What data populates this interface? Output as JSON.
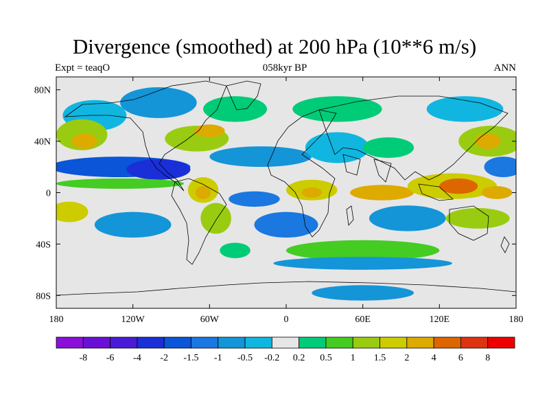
{
  "title": "Divergence (smoothed) at 200 hPa (10**6 m/s)",
  "left_label": "Expt = teaqO",
  "center_label": "058kyr BP",
  "right_label": "ANN",
  "map": {
    "lon_ticks": [
      {
        "value": -180,
        "label": "180"
      },
      {
        "value": -120,
        "label": "120W"
      },
      {
        "value": -60,
        "label": "60W"
      },
      {
        "value": 0,
        "label": "0"
      },
      {
        "value": 60,
        "label": "60E"
      },
      {
        "value": 120,
        "label": "120E"
      },
      {
        "value": 180,
        "label": "180"
      }
    ],
    "lat_ticks": [
      {
        "value": 80,
        "label": "80N"
      },
      {
        "value": 40,
        "label": "40N"
      },
      {
        "value": 0,
        "label": "0"
      },
      {
        "value": -40,
        "label": "40S"
      },
      {
        "value": -80,
        "label": "80S"
      }
    ],
    "lon_range": [
      -180,
      180
    ],
    "lat_range": [
      -90,
      90
    ]
  },
  "colorbar": {
    "colors": [
      "#8a0fd8",
      "#6a10d6",
      "#4a1bd6",
      "#1a2fd8",
      "#0a55d8",
      "#1a78e0",
      "#1495d8",
      "#10b6e0",
      "#e6e6e6",
      "#00cc77",
      "#44cc22",
      "#99cc11",
      "#cccc00",
      "#ddaa00",
      "#dd6600",
      "#dd3311",
      "#ee0000"
    ],
    "labels": [
      "-8",
      "-6",
      "-4",
      "-2",
      "-1.5",
      "-1",
      "-0.5",
      "-0.2",
      "0.2",
      "0.5",
      "1",
      "1.5",
      "2",
      "4",
      "6",
      "8"
    ]
  },
  "blobs": [
    {
      "lon": -150,
      "lat": 60,
      "rx": 25,
      "ry": 12,
      "level": 7
    },
    {
      "lon": -100,
      "lat": 70,
      "rx": 30,
      "ry": 12,
      "level": 6
    },
    {
      "lon": -40,
      "lat": 65,
      "rx": 25,
      "ry": 10,
      "level": 9
    },
    {
      "lon": 40,
      "lat": 65,
      "rx": 35,
      "ry": 10,
      "level": 9
    },
    {
      "lon": 140,
      "lat": 65,
      "rx": 30,
      "ry": 10,
      "level": 7
    },
    {
      "lon": -160,
      "lat": 45,
      "rx": 20,
      "ry": 12,
      "level": 11
    },
    {
      "lon": -158,
      "lat": 40,
      "rx": 10,
      "ry": 6,
      "level": 13
    },
    {
      "lon": -70,
      "lat": 42,
      "rx": 25,
      "ry": 10,
      "level": 11
    },
    {
      "lon": -60,
      "lat": 48,
      "rx": 12,
      "ry": 5,
      "level": 13
    },
    {
      "lon": 160,
      "lat": 40,
      "rx": 25,
      "ry": 12,
      "level": 11
    },
    {
      "lon": 158,
      "lat": 40,
      "rx": 10,
      "ry": 6,
      "level": 13
    },
    {
      "lon": -130,
      "lat": 20,
      "rx": 55,
      "ry": 8,
      "level": 4
    },
    {
      "lon": -100,
      "lat": 18,
      "rx": 25,
      "ry": 8,
      "level": 3
    },
    {
      "lon": -20,
      "lat": 28,
      "rx": 40,
      "ry": 8,
      "level": 6
    },
    {
      "lon": 40,
      "lat": 35,
      "rx": 25,
      "ry": 12,
      "level": 7
    },
    {
      "lon": 80,
      "lat": 35,
      "rx": 20,
      "ry": 8,
      "level": 9
    },
    {
      "lon": 170,
      "lat": 20,
      "rx": 15,
      "ry": 8,
      "level": 5
    },
    {
      "lon": -130,
      "lat": 7,
      "rx": 50,
      "ry": 4,
      "level": 10
    },
    {
      "lon": -65,
      "lat": 2,
      "rx": 12,
      "ry": 10,
      "level": 12
    },
    {
      "lon": -65,
      "lat": 0,
      "rx": 6,
      "ry": 5,
      "level": 13
    },
    {
      "lon": 20,
      "lat": 2,
      "rx": 20,
      "ry": 8,
      "level": 12
    },
    {
      "lon": 20,
      "lat": 0,
      "rx": 8,
      "ry": 4,
      "level": 13
    },
    {
      "lon": 75,
      "lat": 0,
      "rx": 25,
      "ry": 6,
      "level": 13
    },
    {
      "lon": 130,
      "lat": 5,
      "rx": 35,
      "ry": 10,
      "level": 12
    },
    {
      "lon": 135,
      "lat": 5,
      "rx": 15,
      "ry": 6,
      "level": 14
    },
    {
      "lon": 165,
      "lat": 0,
      "rx": 12,
      "ry": 5,
      "level": 13
    },
    {
      "lon": -25,
      "lat": -5,
      "rx": 20,
      "ry": 6,
      "level": 5
    },
    {
      "lon": -170,
      "lat": -15,
      "rx": 15,
      "ry": 8,
      "level": 12
    },
    {
      "lon": -120,
      "lat": -25,
      "rx": 30,
      "ry": 10,
      "level": 6
    },
    {
      "lon": -55,
      "lat": -20,
      "rx": 12,
      "ry": 12,
      "level": 11
    },
    {
      "lon": 0,
      "lat": -25,
      "rx": 25,
      "ry": 10,
      "level": 5
    },
    {
      "lon": 95,
      "lat": -20,
      "rx": 30,
      "ry": 10,
      "level": 6
    },
    {
      "lon": 150,
      "lat": -20,
      "rx": 25,
      "ry": 8,
      "level": 11
    },
    {
      "lon": 60,
      "lat": -45,
      "rx": 60,
      "ry": 8,
      "level": 10
    },
    {
      "lon": -40,
      "lat": -45,
      "rx": 12,
      "ry": 6,
      "level": 9
    },
    {
      "lon": -110,
      "lat": -50,
      "rx": 50,
      "ry": 6,
      "level": 8
    },
    {
      "lon": 60,
      "lat": -55,
      "rx": 70,
      "ry": 5,
      "level": 6
    },
    {
      "lon": -120,
      "lat": -75,
      "rx": 30,
      "ry": 6,
      "level": 8
    },
    {
      "lon": 60,
      "lat": -78,
      "rx": 40,
      "ry": 6,
      "level": 6
    }
  ]
}
